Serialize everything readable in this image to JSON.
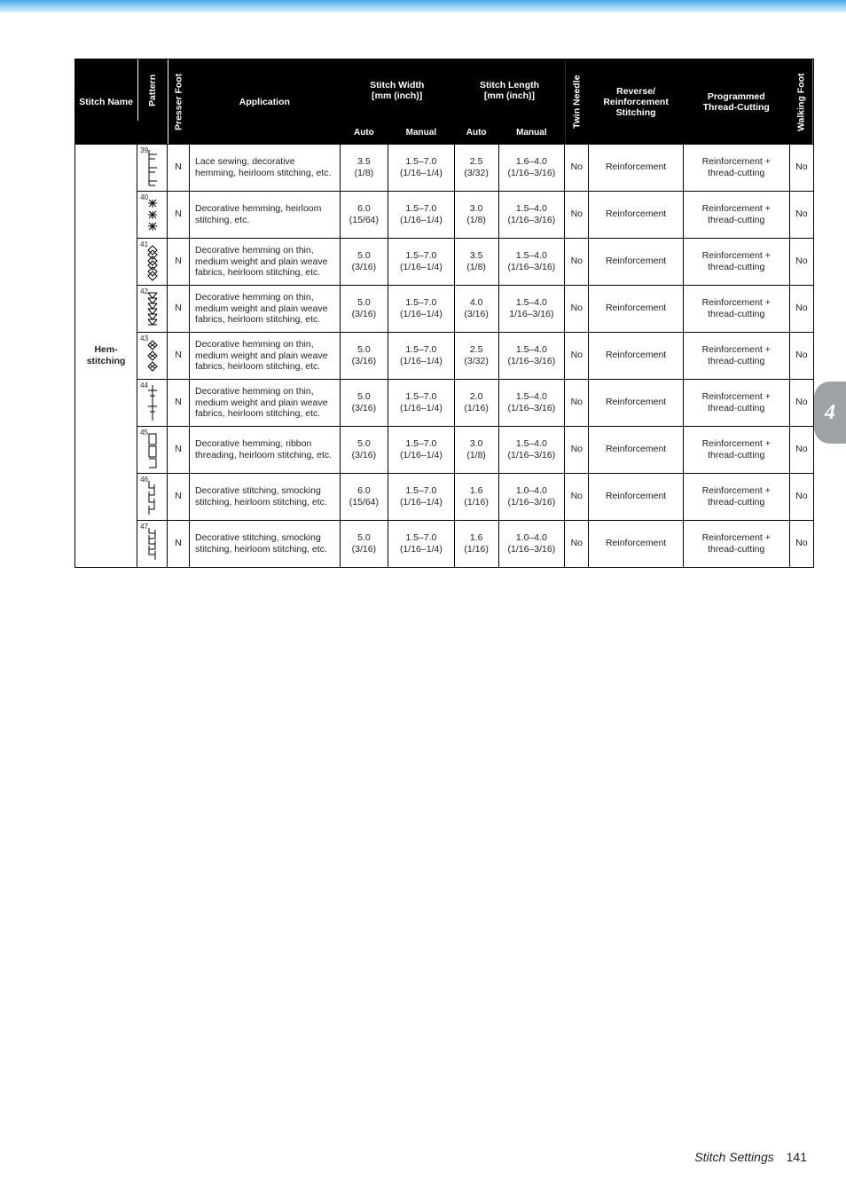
{
  "headers": {
    "stitch_name": "Stitch Name",
    "pattern": "Pattern",
    "presser_foot": "Presser Foot",
    "application": "Application",
    "stitch_width": "Stitch Width\n[mm (inch)]",
    "stitch_length": "Stitch Length\n[mm (inch)]",
    "auto": "Auto",
    "manual": "Manual",
    "twin_needle": "Twin Needle",
    "reverse_reinf": "Reverse/\nReinforcement\nStitching",
    "programmed": "Programmed\nThread-Cutting",
    "walking_foot": "Walking Foot"
  },
  "group_label": "Hem-\nstitching",
  "rows": [
    {
      "num": "39",
      "foot": "N",
      "app": "Lace sewing, decorative hemming, heirloom stitching, etc.",
      "wa": "3.5\n(1/8)",
      "wm": "1.5–7.0\n(1/16–1/4)",
      "la": "2.5\n(3/32)",
      "lm": "1.6–4.0\n(1/16–3/16)",
      "twin": "No",
      "rev": "Reinforcement",
      "prog": "Reinforcement + thread-cutting",
      "walk": "No"
    },
    {
      "num": "40",
      "foot": "N",
      "app": "Decorative hemming, heirloom stitching, etc.",
      "wa": "6.0\n(15/64)",
      "wm": "1.5–7.0\n(1/16–1/4)",
      "la": "3.0\n(1/8)",
      "lm": "1.5–4.0\n(1/16–3/16)",
      "twin": "No",
      "rev": "Reinforcement",
      "prog": "Reinforcement + thread-cutting",
      "walk": "No"
    },
    {
      "num": "41",
      "foot": "N",
      "app": "Decorative hemming on thin, medium weight and plain weave fabrics, heirloom stitching, etc.",
      "wa": "5.0\n(3/16)",
      "wm": "1.5–7.0\n(1/16–1/4)",
      "la": "3.5\n(1/8)",
      "lm": "1.5–4.0\n(1/16–3/16)",
      "twin": "No",
      "rev": "Reinforcement",
      "prog": "Reinforcement + thread-cutting",
      "walk": "No"
    },
    {
      "num": "42",
      "foot": "N",
      "app": "Decorative hemming on thin, medium weight and plain weave fabrics, heirloom stitching, etc.",
      "wa": "5.0\n(3/16)",
      "wm": "1.5–7.0\n(1/16–1/4)",
      "la": "4.0\n(3/16)",
      "lm": "1.5–4.0\n1/16–3/16)",
      "twin": "No",
      "rev": "Reinforcement",
      "prog": "Reinforcement + thread-cutting",
      "walk": "No"
    },
    {
      "num": "43",
      "foot": "N",
      "app": "Decorative hemming on thin, medium weight and plain weave fabrics, heirloom stitching, etc.",
      "wa": "5.0\n(3/16)",
      "wm": "1.5–7.0\n(1/16–1/4)",
      "la": "2.5\n(3/32)",
      "lm": "1.5–4.0\n(1/16–3/16)",
      "twin": "No",
      "rev": "Reinforcement",
      "prog": "Reinforcement + thread-cutting",
      "walk": "No"
    },
    {
      "num": "44",
      "foot": "N",
      "app": "Decorative hemming on thin, medium weight and plain weave fabrics, heirloom stitching, etc.",
      "wa": "5.0\n(3/16)",
      "wm": "1.5–7.0\n(1/16–1/4)",
      "la": "2.0\n(1/16)",
      "lm": "1.5–4.0\n(1/16–3/16)",
      "twin": "No",
      "rev": "Reinforcement",
      "prog": "Reinforcement + thread-cutting",
      "walk": "No"
    },
    {
      "num": "45",
      "foot": "N",
      "app": "Decorative hemming, ribbon threading, heirloom stitching, etc.",
      "wa": "5.0\n(3/16)",
      "wm": "1.5–7.0\n(1/16–1/4)",
      "la": "3.0\n(1/8)",
      "lm": "1.5–4.0\n(1/16–3/16)",
      "twin": "No",
      "rev": "Reinforcement",
      "prog": "Reinforcement + thread-cutting",
      "walk": "No"
    },
    {
      "num": "46",
      "foot": "N",
      "app": "Decorative stitching, smocking stitching, heirloom stitching, etc.",
      "wa": "6.0\n(15/64)",
      "wm": "1.5–7.0\n(1/16–1/4)",
      "la": "1.6\n(1/16)",
      "lm": "1.0–4.0\n(1/16–3/16)",
      "twin": "No",
      "rev": "Reinforcement",
      "prog": "Reinforcement + thread-cutting",
      "walk": "No"
    },
    {
      "num": "47",
      "foot": "N",
      "app": "Decorative stitching, smocking stitching, heirloom stitching, etc.",
      "wa": "5.0\n(3/16)",
      "wm": "1.5–7.0\n(1/16–1/4)",
      "la": "1.6\n(1/16)",
      "lm": "1.0–4.0\n(1/16–3/16)",
      "twin": "No",
      "rev": "Reinforcement",
      "prog": "Reinforcement + thread-cutting",
      "walk": "No"
    }
  ],
  "pattern_svgs": [
    "M3 0 L3 40 M3 5 L12 5 M3 10 L10 10 M3 20 L12 20 M3 25 L10 25 M3 35 L12 35 M3 40 L10 40",
    "M7 3 L7 12 M2 7 L12 7 M3 3 L11 11 M11 3 L3 11 M7 16 L7 25 M2 20 L12 20 M3 16 L11 24 M11 16 L3 24 M7 29 L7 38 M2 33 L12 33 M3 29 L11 37 M11 29 L3 37",
    "M7 2 L12 7 L7 12 L2 7 Z M7 7 L12 12 L7 17 L2 12 Z M7 14 L12 19 L7 24 L2 19 Z M7 19 L12 24 L7 29 L2 24 Z M7 26 L12 31 L7 36 L2 31 Z M7 31 L12 36 L7 41 L2 36 Z",
    "M2 2 L12 2 M2 2 L7 8 L2 2 M12 2 L7 8 L12 2 M2 8 L12 8 M2 8 L7 14 M12 8 L7 14 M2 14 L12 14 M2 14 L7 20 M12 14 L7 20 M2 20 L12 20 M2 20 L7 26 M12 20 L7 26 M2 26 L12 26 M2 26 L7 32 M12 26 L7 32 M2 32 L12 32 M2 32 L7 38 M12 32 L7 38 M2 38 L12 38",
    "M7 3 L12 8 L7 13 L2 8 Z M4 6 L10 10 M10 6 L4 10 M7 15 L12 20 L7 25 L2 20 Z M4 18 L10 22 M10 18 L4 22 M7 27 L12 32 L7 37 L2 32 Z M4 30 L10 34 M10 30 L4 34",
    "M7 0 L7 40 M2 6 L12 6 M4 12 L10 12 M2 24 L12 24 M4 30 L10 30",
    "M3 2 L11 2 L11 14 L3 14 Z M3 16 L11 16 L11 28 L3 28 Z M3 30 L11 30 L11 40 L3 40",
    "M3 2 L3 10 L9 10 M9 6 L9 18 L3 18 M3 14 L3 26 L9 26 M9 22 L9 34 L3 34 M3 30 L3 40",
    "M3 2 L3 8 L10 8 M10 4 L10 14 L3 14 M3 10 L3 20 L10 20 M10 16 L10 26 L3 26 M3 22 L3 32 L10 32 M10 28 L10 38"
  ],
  "tab": "4",
  "footer": {
    "label": "Stitch Settings",
    "page": "141"
  }
}
